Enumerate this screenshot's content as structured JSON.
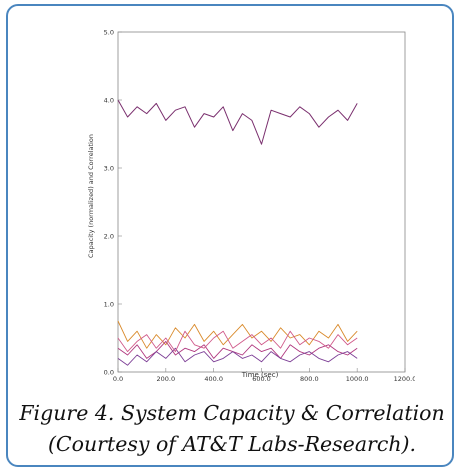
{
  "figure": {
    "caption_line1": "Figure 4. System Capacity & Correlation",
    "caption_line2": "(Courtesy of AT&T Labs-Research)."
  },
  "chart_data": {
    "type": "line",
    "title": "",
    "xlabel": "Time (sec)",
    "ylabel": "Capacity (normalized) and Correlation",
    "xlim": [
      0,
      1200
    ],
    "ylim": [
      0,
      5
    ],
    "x_ticks": [
      "0.0",
      "200.0",
      "400.0",
      "600.0",
      "800.0",
      "1000.0",
      "1200.0"
    ],
    "y_ticks": [
      "0.0",
      "1.0",
      "2.0",
      "3.0",
      "4.0",
      "5.0"
    ],
    "y_tick_values": [
      0,
      1,
      2,
      3,
      4,
      5
    ],
    "x_tick_values": [
      0,
      200,
      400,
      600,
      800,
      1000,
      1200
    ],
    "grid": false,
    "colors": {
      "upper_series": "#7a2f6e",
      "lower_orange": "#d98a2b",
      "lower_magenta": "#b0387f",
      "lower_purple": "#7d3f96",
      "lower_pink": "#d05a8a",
      "axis": "#888888"
    },
    "series": [
      {
        "x": [
          0,
          40,
          80,
          120,
          160,
          200,
          240,
          280,
          320,
          360,
          400,
          440,
          480,
          520,
          560,
          600,
          640,
          680,
          720,
          760,
          800,
          840,
          880,
          920,
          960,
          1000
        ],
        "values": [
          4.0,
          3.75,
          3.9,
          3.8,
          3.95,
          3.7,
          3.85,
          3.9,
          3.6,
          3.8,
          3.75,
          3.9,
          3.55,
          3.8,
          3.7,
          3.35,
          3.85,
          3.8,
          3.75,
          3.9,
          3.8,
          3.6,
          3.75,
          3.85,
          3.7,
          3.95
        ]
      },
      {
        "x": [
          0,
          40,
          80,
          120,
          160,
          200,
          240,
          280,
          320,
          360,
          400,
          440,
          480,
          520,
          560,
          600,
          640,
          680,
          720,
          760,
          800,
          840,
          880,
          920,
          960,
          1000
        ],
        "values": [
          0.75,
          0.45,
          0.6,
          0.35,
          0.55,
          0.4,
          0.65,
          0.5,
          0.7,
          0.45,
          0.6,
          0.4,
          0.55,
          0.7,
          0.5,
          0.6,
          0.45,
          0.65,
          0.5,
          0.55,
          0.4,
          0.6,
          0.5,
          0.7,
          0.45,
          0.6
        ]
      },
      {
        "x": [
          0,
          40,
          80,
          120,
          160,
          200,
          240,
          280,
          320,
          360,
          400,
          440,
          480,
          520,
          560,
          600,
          640,
          680,
          720,
          760,
          800,
          840,
          880,
          920,
          960,
          1000
        ],
        "values": [
          0.35,
          0.25,
          0.4,
          0.2,
          0.3,
          0.45,
          0.25,
          0.35,
          0.3,
          0.4,
          0.2,
          0.35,
          0.3,
          0.25,
          0.4,
          0.3,
          0.35,
          0.2,
          0.4,
          0.3,
          0.25,
          0.35,
          0.4,
          0.3,
          0.25,
          0.35
        ]
      },
      {
        "x": [
          0,
          40,
          80,
          120,
          160,
          200,
          240,
          280,
          320,
          360,
          400,
          440,
          480,
          520,
          560,
          600,
          640,
          680,
          720,
          760,
          800,
          840,
          880,
          920,
          960,
          1000
        ],
        "values": [
          0.2,
          0.1,
          0.25,
          0.15,
          0.3,
          0.2,
          0.35,
          0.15,
          0.25,
          0.3,
          0.15,
          0.2,
          0.3,
          0.2,
          0.25,
          0.15,
          0.3,
          0.2,
          0.15,
          0.25,
          0.3,
          0.2,
          0.15,
          0.25,
          0.3,
          0.2
        ]
      },
      {
        "x": [
          0,
          40,
          80,
          120,
          160,
          200,
          240,
          280,
          320,
          360,
          400,
          440,
          480,
          520,
          560,
          600,
          640,
          680,
          720,
          760,
          800,
          840,
          880,
          920,
          960,
          1000
        ],
        "values": [
          0.5,
          0.3,
          0.45,
          0.55,
          0.35,
          0.5,
          0.3,
          0.6,
          0.4,
          0.35,
          0.5,
          0.6,
          0.35,
          0.45,
          0.55,
          0.4,
          0.5,
          0.35,
          0.6,
          0.4,
          0.5,
          0.45,
          0.35,
          0.55,
          0.4,
          0.5
        ]
      }
    ]
  }
}
